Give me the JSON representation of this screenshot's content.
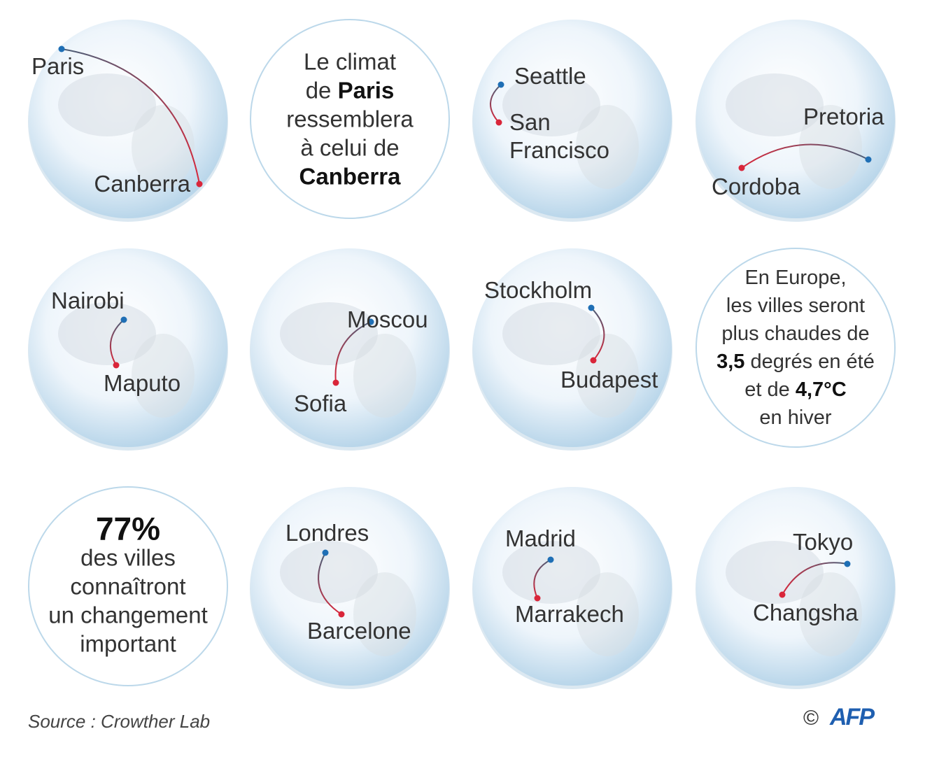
{
  "panels": [
    {
      "from": "Paris",
      "to": "Canberra"
    },
    {
      "lines": [
        [
          {
            "text": "Le climat",
            "bold": false
          }
        ],
        [
          {
            "text": "de ",
            "bold": false
          },
          {
            "text": "Paris",
            "bold": true
          }
        ],
        [
          {
            "text": "ressemblera",
            "bold": false
          }
        ],
        [
          {
            "text": "à celui de",
            "bold": false
          }
        ],
        [
          {
            "text": "Canberra",
            "bold": true
          }
        ]
      ]
    },
    {
      "from": "Seattle",
      "to": "San Francisco"
    },
    {
      "from": "Pretoria",
      "to": "Cordoba"
    },
    {
      "from": "Nairobi",
      "to": "Maputo"
    },
    {
      "from": "Moscou",
      "to": "Sofia"
    },
    {
      "from": "Stockholm",
      "to": "Budapest"
    },
    {
      "lines": [
        [
          {
            "text": "En Europe,",
            "bold": false
          }
        ],
        [
          {
            "text": "les villes seront",
            "bold": false
          }
        ],
        [
          {
            "text": "plus chaudes de",
            "bold": false
          }
        ],
        [
          {
            "text": "3,5",
            "bold": true
          },
          {
            "text": " degrés en été",
            "bold": false
          }
        ],
        [
          {
            "text": "et de ",
            "bold": false
          },
          {
            "text": "4,7°C",
            "bold": true
          }
        ],
        [
          {
            "text": "en hiver",
            "bold": false
          }
        ]
      ]
    },
    {
      "lines": [
        [
          {
            "text": "77%",
            "bold": true
          }
        ],
        [
          {
            "text": "des villes",
            "bold": false
          }
        ],
        [
          {
            "text": "connaîtront",
            "bold": false
          }
        ],
        [
          {
            "text": "un changement",
            "bold": false
          }
        ],
        [
          {
            "text": "important",
            "bold": false
          }
        ]
      ]
    },
    {
      "from": "Londres",
      "to": "Barcelone"
    },
    {
      "from": "Madrid",
      "to": "Marrakech"
    },
    {
      "from": "Tokyo",
      "to": "Changsha"
    }
  ],
  "footer": {
    "source": "Source : Crowther Lab",
    "credit": "©",
    "logo": "AFP"
  }
}
